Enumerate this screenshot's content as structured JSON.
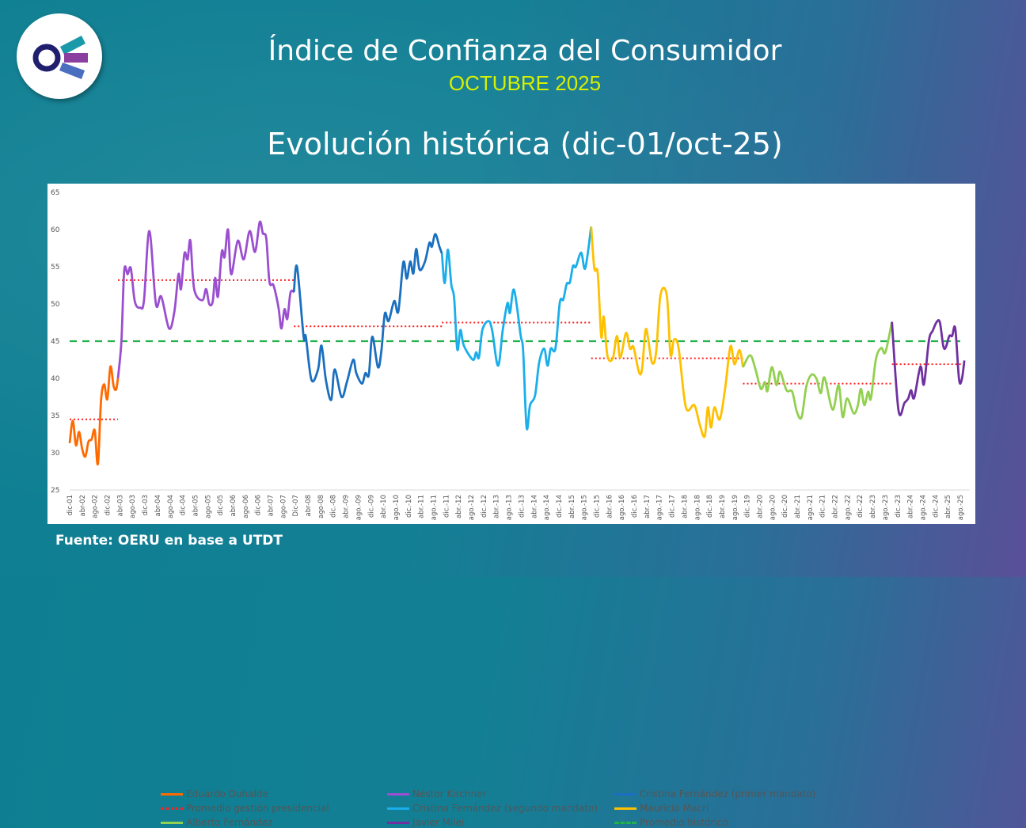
{
  "header": {
    "title": "Índice de Confianza del Consumidor",
    "subtitle": "OCTUBRE 2025",
    "chart_title": "Evolución histórica (dic-01/oct-25)"
  },
  "footer": {
    "source": "Fuente: OERU en base a UTDT"
  },
  "logo": {
    "icon": "oeru-logo",
    "colors": [
      "#1a1a6e",
      "#1a9aa8",
      "#8a3fa0",
      "#4a6fc0"
    ]
  },
  "chart_data": {
    "type": "line",
    "title": "Evolución histórica (dic-01/oct-25)",
    "x_unit": "months since dic-01",
    "ylim": [
      25,
      65
    ],
    "yticks": [
      25,
      30,
      35,
      40,
      45,
      50,
      55,
      60,
      65
    ],
    "xtick_step_months": 4,
    "xtick_labels": [
      "dic-01",
      "abr-02",
      "ago-02",
      "dic-02",
      "abr-03",
      "ago-03",
      "dic-03",
      "abr-04",
      "ago-04",
      "dic-04",
      "abr-05",
      "ago-05",
      "dic-05",
      "abr-06",
      "ago-06",
      "dic-06",
      "abr-07",
      "ago-07",
      "Dic-07",
      "abr-08",
      "ago-08",
      "dic.-08",
      "abr.-09",
      "ago.-09",
      "dic.-09",
      "abr.-10",
      "ago.-10",
      "dic.-10",
      "abr.-11",
      "ago.-11",
      "dic.-11",
      "abr.-12",
      "ago.-12",
      "dic.-12",
      "abr.-13",
      "ago.-13",
      "dic.-13",
      "abr.-14",
      "ago.-14",
      "dic.-14",
      "abr.-15",
      "ago.-15",
      "dic.-15",
      "abr.-16",
      "ago.-16",
      "dic.-16",
      "abr.-17",
      "ago.-17",
      "dic.-17",
      "abr.-18",
      "ago.-18",
      "dic.-18",
      "abr.-19",
      "ago.-19",
      "dic.-19",
      "abr.-20",
      "ago.-20",
      "dic.-20",
      "abr.-21",
      "ago.-21",
      "dic.-21",
      "abr.-22",
      "ago.-22",
      "dic.-22",
      "abr.-23",
      "ago.-23",
      "dic.-23",
      "abr.-24",
      "ago.-24",
      "dic.-24",
      "abr.-25",
      "ago.-25"
    ],
    "grid": false,
    "legend_position": "bottom-inside",
    "series": [
      {
        "name": "Eduardo Duhalde",
        "color": "#ff6a00",
        "average": 34.5,
        "points": [
          [
            0,
            31.3
          ],
          [
            1,
            34.3
          ],
          [
            2,
            31
          ],
          [
            3,
            32.8
          ],
          [
            4,
            30.5
          ],
          [
            5,
            29.5
          ],
          [
            6,
            31.5
          ],
          [
            7,
            31.8
          ],
          [
            8,
            33
          ],
          [
            9,
            28.5
          ],
          [
            10,
            37
          ],
          [
            11,
            39.2
          ],
          [
            12,
            37.2
          ],
          [
            13,
            41.6
          ],
          [
            14,
            39
          ],
          [
            14.8,
            38.5
          ],
          [
            15.4,
            40
          ]
        ]
      },
      {
        "name": "Néstor Kirchner",
        "color": "#9b4fd0",
        "average": 53.2,
        "points": [
          [
            15.4,
            40
          ],
          [
            16.5,
            45
          ],
          [
            17.4,
            54.5
          ],
          [
            18.5,
            54
          ],
          [
            19.5,
            54.8
          ],
          [
            20.8,
            50.3
          ],
          [
            22.5,
            49.5
          ],
          [
            23.7,
            50.5
          ],
          [
            25.4,
            59.8
          ],
          [
            27.5,
            50
          ],
          [
            29.2,
            51
          ],
          [
            31.7,
            46.7
          ],
          [
            33.4,
            49
          ],
          [
            34.7,
            54
          ],
          [
            35.5,
            52
          ],
          [
            36.6,
            56.8
          ],
          [
            37.6,
            56
          ],
          [
            38.5,
            58.5
          ],
          [
            39.7,
            52
          ],
          [
            42.3,
            50.5
          ],
          [
            43.5,
            52
          ],
          [
            44.5,
            50
          ],
          [
            45.6,
            50.3
          ],
          [
            46.4,
            53.5
          ],
          [
            47.3,
            51
          ],
          [
            48.5,
            57
          ],
          [
            49.4,
            56.3
          ],
          [
            50.5,
            60
          ],
          [
            51.5,
            54
          ],
          [
            53.6,
            58.5
          ],
          [
            55.5,
            56
          ],
          [
            57.4,
            59.8
          ],
          [
            59.1,
            57
          ],
          [
            60.6,
            61
          ],
          [
            61.6,
            59.5
          ],
          [
            62.7,
            58.8
          ],
          [
            63.7,
            53
          ],
          [
            65,
            52.5
          ],
          [
            66.6,
            49.5
          ],
          [
            67.5,
            46.7
          ],
          [
            68.5,
            49.3
          ],
          [
            69.4,
            48
          ],
          [
            70.4,
            51.5
          ],
          [
            71.5,
            51.6
          ]
        ]
      },
      {
        "name": "Cristina Fernández (primer mandato)",
        "color": "#1a6fbf",
        "average": 47.0,
        "points": [
          [
            71.5,
            51.6
          ],
          [
            72.5,
            55
          ],
          [
            74.6,
            45.6
          ],
          [
            75.3,
            45.6
          ],
          [
            77.1,
            39.8
          ],
          [
            79.2,
            41.2
          ],
          [
            80.3,
            44.4
          ],
          [
            81.7,
            39.8
          ],
          [
            83.4,
            37.1
          ],
          [
            84.5,
            41.2
          ],
          [
            86.7,
            37.5
          ],
          [
            88.4,
            39.5
          ],
          [
            90.4,
            42.5
          ],
          [
            91.4,
            40.7
          ],
          [
            93.2,
            39.3
          ],
          [
            94.3,
            40.7
          ],
          [
            95.4,
            40.5
          ],
          [
            96.5,
            45.6
          ],
          [
            98.3,
            41.5
          ],
          [
            99.4,
            43.7
          ],
          [
            100.5,
            48.7
          ],
          [
            101.7,
            47.7
          ],
          [
            103.5,
            50.4
          ],
          [
            104.8,
            49
          ],
          [
            106.4,
            55.6
          ],
          [
            107.5,
            53.4
          ],
          [
            108.6,
            55.7
          ],
          [
            109.6,
            54.1
          ],
          [
            110.5,
            57.4
          ],
          [
            111.6,
            54.6
          ],
          [
            113.3,
            55.7
          ],
          [
            114.7,
            58.2
          ],
          [
            115.5,
            57.7
          ],
          [
            116.6,
            59.4
          ],
          [
            117.9,
            57.7
          ],
          [
            118.7,
            56.8
          ]
        ]
      },
      {
        "name": "Cristina Fernández (segundo mandato)",
        "color": "#1aaeea",
        "average": 47.5,
        "points": [
          [
            118.7,
            56.8
          ],
          [
            119.6,
            52.8
          ],
          [
            120.6,
            57.3
          ],
          [
            121.7,
            52.6
          ],
          [
            122.6,
            50.8
          ],
          [
            123.6,
            43.9
          ],
          [
            124.6,
            46.5
          ],
          [
            125.7,
            44.4
          ],
          [
            128.6,
            42.5
          ],
          [
            129.6,
            43.5
          ],
          [
            130.5,
            42.8
          ],
          [
            131.6,
            46.5
          ],
          [
            133.5,
            47.7
          ],
          [
            134.7,
            46.5
          ],
          [
            136.6,
            41.7
          ],
          [
            138.1,
            46.5
          ],
          [
            139.6,
            50.1
          ],
          [
            140.4,
            48.8
          ],
          [
            141.7,
            51.9
          ],
          [
            143.8,
            45.8
          ],
          [
            144.6,
            43.7
          ],
          [
            145.7,
            33.4
          ],
          [
            146.8,
            36.4
          ],
          [
            148.4,
            37.7
          ],
          [
            149.7,
            42.1
          ],
          [
            151.3,
            44
          ],
          [
            152.4,
            41.7
          ],
          [
            153.4,
            44
          ],
          [
            154.9,
            44
          ],
          [
            156.3,
            50.2
          ],
          [
            157.4,
            50.6
          ],
          [
            158.5,
            52.7
          ],
          [
            159.5,
            52.9
          ],
          [
            160.5,
            55.1
          ],
          [
            161.4,
            55
          ],
          [
            163.1,
            56.9
          ],
          [
            164.4,
            54.8
          ],
          [
            166.3,
            60.4
          ]
        ]
      },
      {
        "name": "Mauricio Macri",
        "color": "#ffc000",
        "average": 42.7,
        "points": [
          [
            166.3,
            60.4
          ],
          [
            167.3,
            54.8
          ],
          [
            168.4,
            54.1
          ],
          [
            169.5,
            45.6
          ],
          [
            170.3,
            48.3
          ],
          [
            171.5,
            43
          ],
          [
            173.2,
            42.7
          ],
          [
            174.5,
            45.7
          ],
          [
            175.6,
            42.8
          ],
          [
            177.4,
            46.1
          ],
          [
            178.7,
            44
          ],
          [
            179.8,
            44.2
          ],
          [
            181.5,
            40.9
          ],
          [
            182.5,
            41.2
          ],
          [
            183.6,
            46.4
          ],
          [
            184.4,
            45.5
          ],
          [
            185.7,
            42.1
          ],
          [
            187,
            43.5
          ],
          [
            188.4,
            51.2
          ],
          [
            190.4,
            51.2
          ],
          [
            191.6,
            43.2
          ],
          [
            192.7,
            45.2
          ],
          [
            194.2,
            44
          ],
          [
            196.5,
            36.1
          ],
          [
            199.2,
            36.4
          ],
          [
            200.9,
            33.8
          ],
          [
            202.5,
            32.2
          ],
          [
            203.5,
            36.1
          ],
          [
            204.5,
            33.4
          ],
          [
            205.6,
            36.1
          ],
          [
            207.3,
            34.5
          ],
          [
            209,
            38.6
          ],
          [
            210.7,
            44.3
          ],
          [
            212,
            41.9
          ],
          [
            213.6,
            43.8
          ],
          [
            214.7,
            41.5
          ]
        ]
      },
      {
        "name": "Alberto Fernández",
        "color": "#92d050",
        "average": 39.3,
        "points": [
          [
            214.7,
            41.5
          ],
          [
            217,
            43.1
          ],
          [
            218.7,
            41.2
          ],
          [
            220.4,
            38.6
          ],
          [
            221.7,
            39.5
          ],
          [
            222.5,
            38.3
          ],
          [
            223.9,
            41.5
          ],
          [
            225.4,
            39.1
          ],
          [
            226.5,
            40.9
          ],
          [
            228.6,
            38.4
          ],
          [
            230.4,
            38.2
          ],
          [
            231.9,
            35.5
          ],
          [
            233.4,
            34.8
          ],
          [
            234.9,
            38.9
          ],
          [
            236.6,
            40.5
          ],
          [
            238.2,
            39.9
          ],
          [
            239.5,
            38
          ],
          [
            240.7,
            40.1
          ],
          [
            243.3,
            35.8
          ],
          [
            245.2,
            39.1
          ],
          [
            246.5,
            34.8
          ],
          [
            247.9,
            37.3
          ],
          [
            250,
            35.3
          ],
          [
            251.3,
            36.3
          ],
          [
            252.3,
            38.6
          ],
          [
            253.4,
            36.4
          ],
          [
            254.6,
            38.2
          ],
          [
            255.5,
            37.3
          ],
          [
            257.1,
            42.6
          ],
          [
            258.8,
            44.1
          ],
          [
            260.1,
            43.5
          ],
          [
            262.2,
            47.6
          ]
        ]
      },
      {
        "name": "Javier Milei",
        "color": "#7030a0",
        "average": 41.9,
        "points": [
          [
            262.2,
            47.6
          ],
          [
            264.3,
            35.7
          ],
          [
            266.2,
            36.7
          ],
          [
            267.4,
            37.3
          ],
          [
            268.3,
            38.4
          ],
          [
            269.3,
            37.4
          ],
          [
            271.3,
            41.6
          ],
          [
            272.4,
            39.2
          ],
          [
            274,
            45.1
          ],
          [
            275.2,
            46.4
          ],
          [
            276.5,
            47.6
          ],
          [
            277.5,
            47.5
          ],
          [
            278.6,
            44.3
          ],
          [
            279.4,
            44.2
          ],
          [
            280.5,
            45.7
          ],
          [
            281.4,
            45.7
          ],
          [
            282.4,
            46.7
          ],
          [
            283.6,
            39.9
          ],
          [
            284.5,
            39.9
          ],
          [
            285.3,
            42.4
          ]
        ]
      }
    ],
    "reference_lines": {
      "presidential_average": {
        "name": "Promedio gestión presidencial",
        "color": "#ff2020",
        "style": "dotted"
      },
      "historical_average": {
        "name": "Promedio histórico",
        "color": "#22b14c",
        "style": "dashed",
        "value": 45.0
      }
    },
    "legend": [
      "Eduardo Duhalde",
      "Néstor Kirchner",
      "Cristina Fernández (primer mandato)",
      "Promedio gestión presidencial",
      "Cristina Fernández (segundo mandato)",
      "Mauricio Macri",
      "Alberto Fernández",
      "Javier Milei",
      "Promedio histórico"
    ]
  }
}
